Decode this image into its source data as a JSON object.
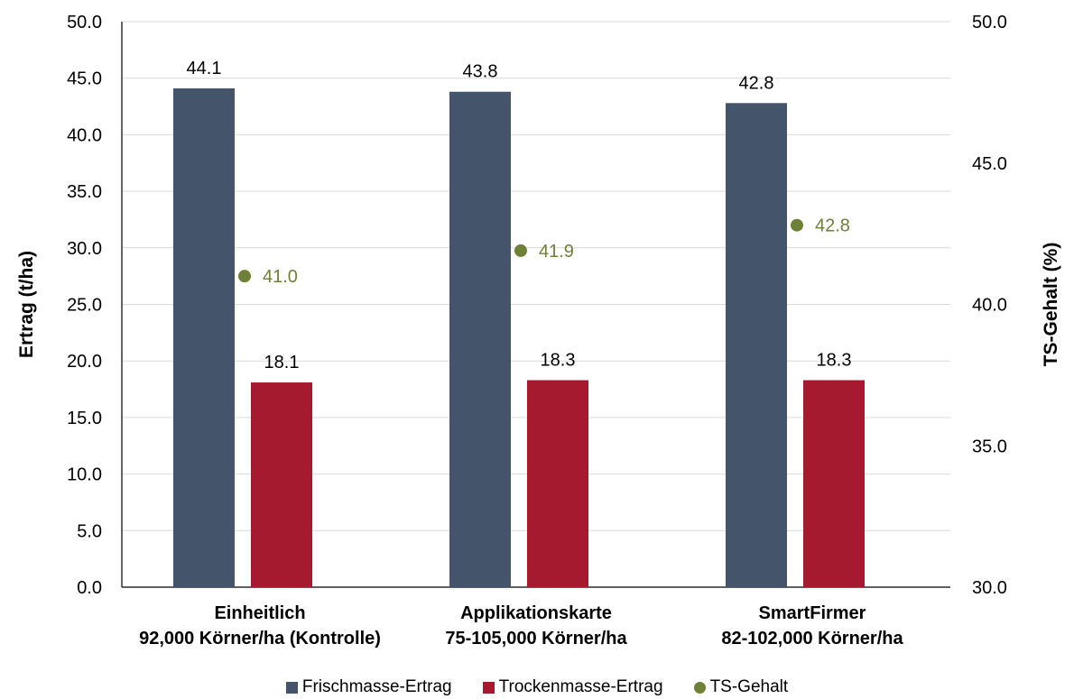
{
  "chart_data": {
    "type": "bar",
    "categories": [
      [
        "Einheitlich",
        "92,000 Körner/ha (Kontrolle)"
      ],
      [
        "Applikationskarte",
        "75-105,000 Körner/ha"
      ],
      [
        "SmartFirmer",
        "82-102,000 Körner/ha"
      ]
    ],
    "series": [
      {
        "name": "Frischmasse-Ertrag",
        "type": "bar",
        "axis": "left",
        "color": "#44546a",
        "values": [
          44.1,
          43.8,
          42.8
        ]
      },
      {
        "name": "Trockenmasse-Ertrag",
        "type": "bar",
        "axis": "left",
        "color": "#a51a2f",
        "values": [
          18.1,
          18.3,
          18.3
        ]
      },
      {
        "name": "TS-Gehalt",
        "type": "scatter",
        "axis": "right",
        "color": "#6f8037",
        "values": [
          41.0,
          41.9,
          42.8
        ]
      }
    ],
    "ylabel": "Ertrag (t/ha)",
    "y2label": "TS-Gehalt (%)",
    "ylim": [
      0,
      50
    ],
    "yticks": [
      "0.0",
      "5.0",
      "10.0",
      "15.0",
      "20.0",
      "25.0",
      "30.0",
      "35.0",
      "40.0",
      "45.0",
      "50.0"
    ],
    "y2lim": [
      30,
      50
    ],
    "y2ticks": [
      "30.0",
      "35.0",
      "40.0",
      "45.0",
      "50.0"
    ],
    "grid": true,
    "legend_position": "bottom"
  }
}
